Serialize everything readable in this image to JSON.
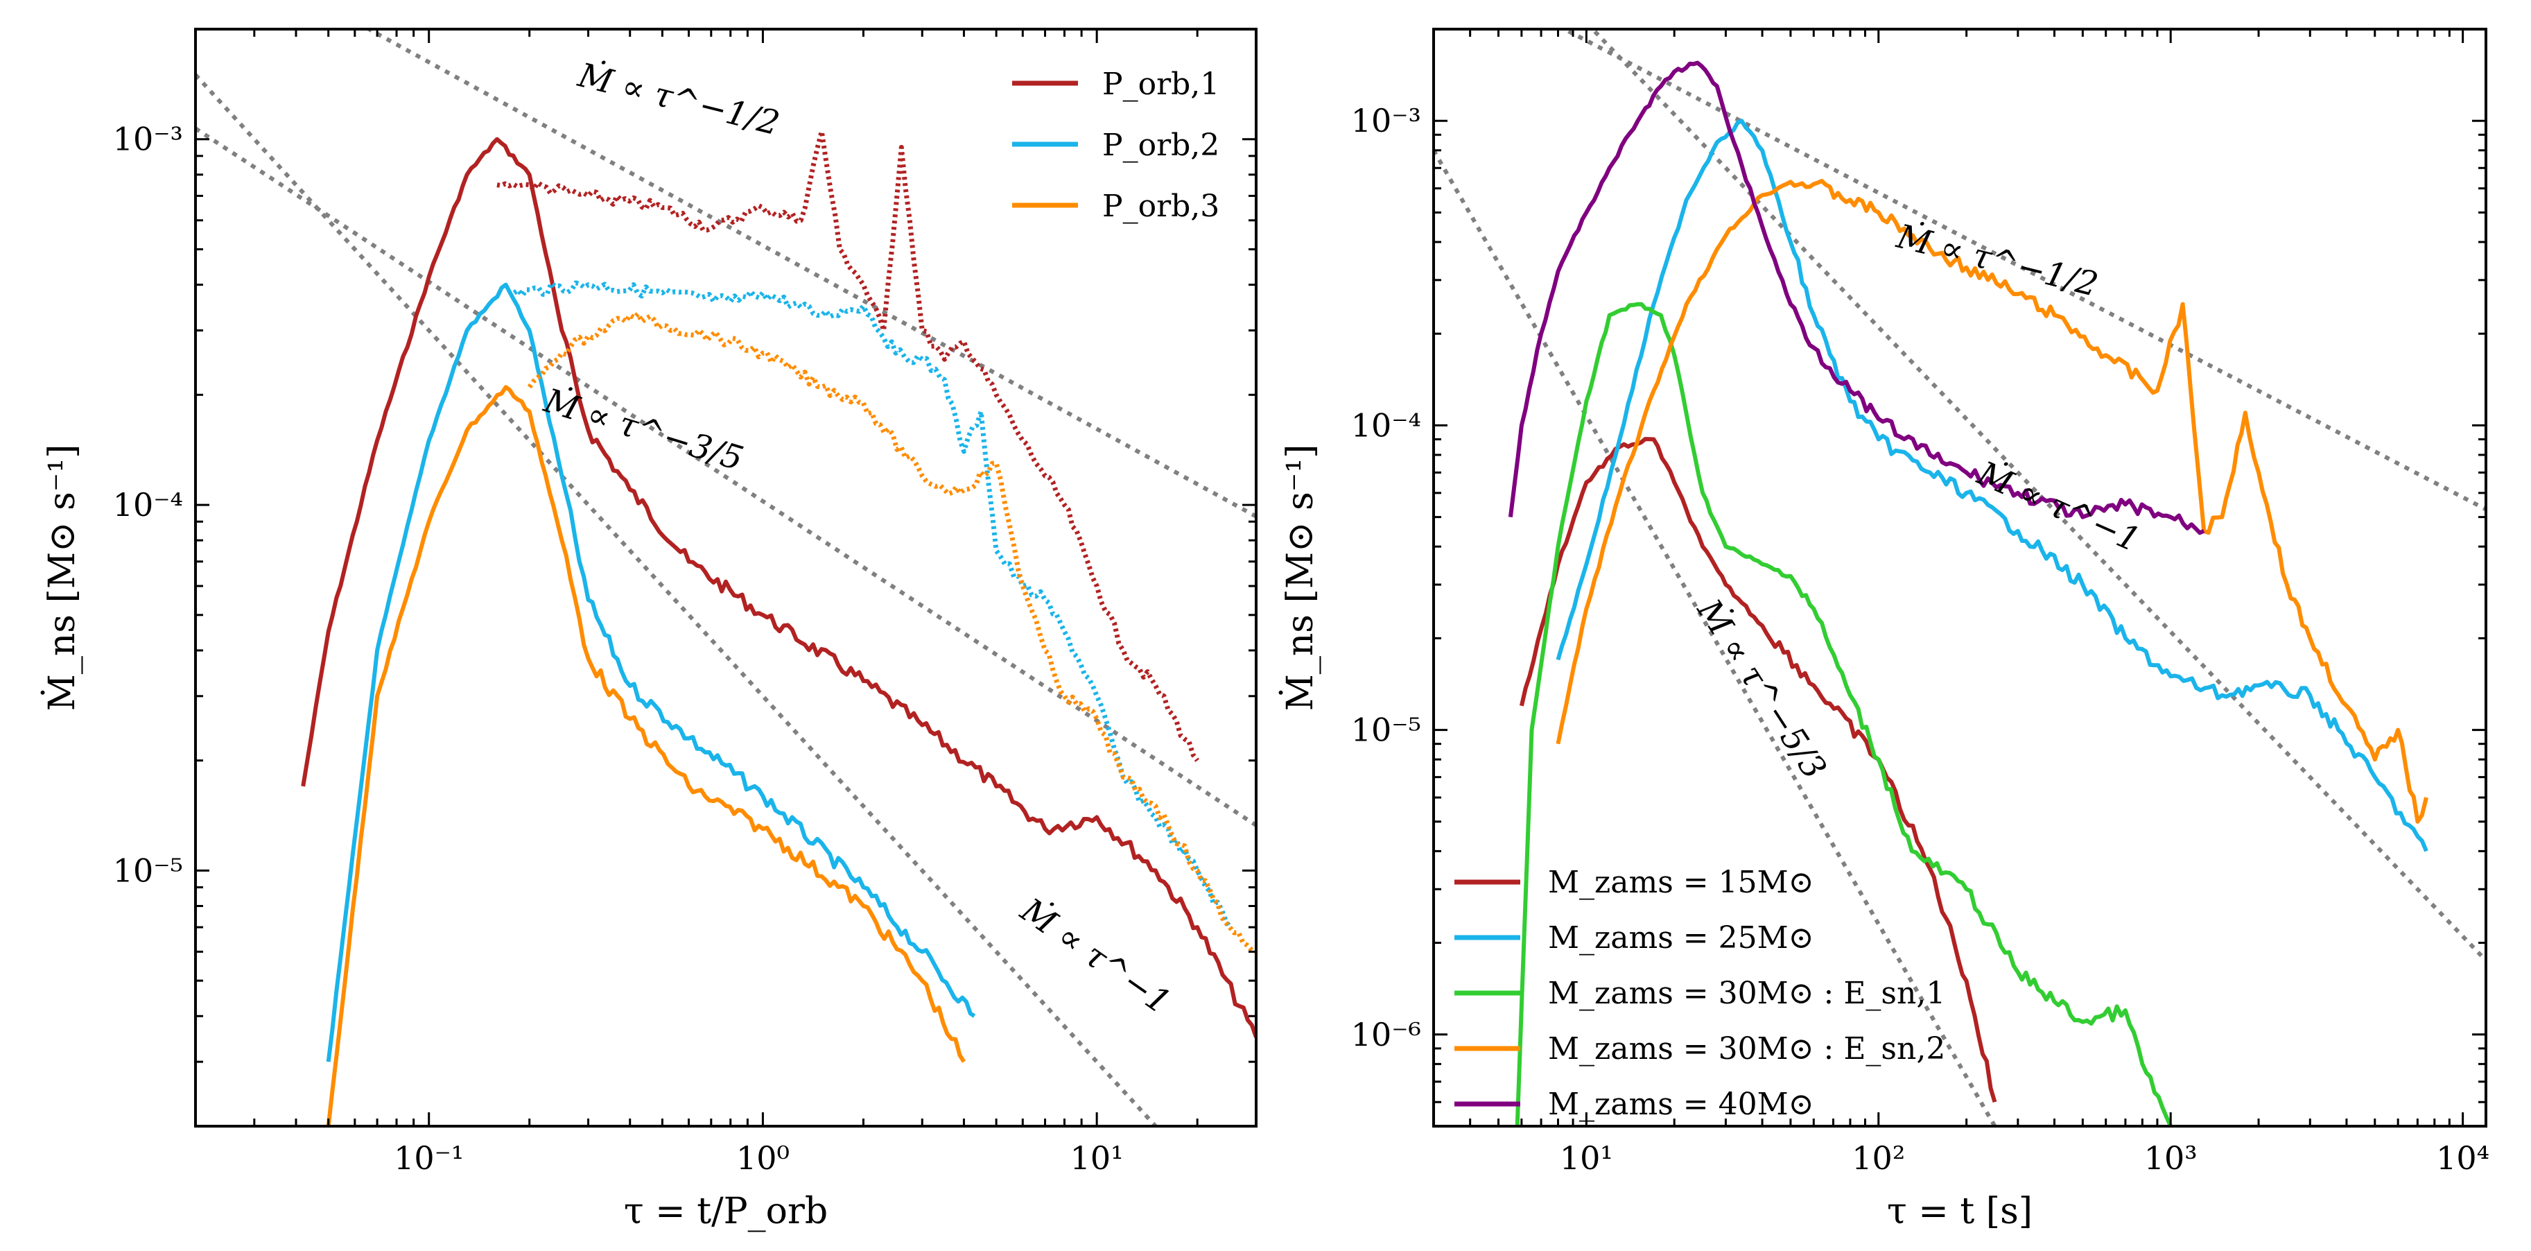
{
  "chart_data": [
    {
      "type": "line",
      "panel": "left",
      "xscale": "log",
      "yscale": "log",
      "xlim": [
        0.02,
        30
      ],
      "ylim": [
        2e-06,
        0.002
      ],
      "xlabel": "τ = t/P_orb",
      "ylabel": "Ṁ_ns [M⊙ s⁻¹]",
      "xticks": [
        {
          "v": 0.1,
          "label": "10⁻¹"
        },
        {
          "v": 1,
          "label": "10⁰"
        },
        {
          "v": 10,
          "label": "10¹"
        }
      ],
      "yticks": [
        {
          "v": 1e-05,
          "label": "10⁻⁵"
        },
        {
          "v": 0.0001,
          "label": "10⁻⁴"
        },
        {
          "v": 0.001,
          "label": "10⁻³"
        }
      ],
      "legend": {
        "position": "top-right",
        "entries": [
          "P_orb,1",
          "P_orb,2",
          "P_orb,3"
        ]
      },
      "series": [
        {
          "name": "P_orb,1 (solid)",
          "color": "#b22222",
          "style": "solid",
          "x": [
            0.042,
            0.05,
            0.07,
            0.1,
            0.13,
            0.16,
            0.2,
            0.25,
            0.3,
            0.4,
            0.6,
            1,
            2,
            3,
            5,
            7,
            10,
            15,
            20,
            30
          ],
          "y": [
            1.7e-05,
            4.5e-05,
            0.00015,
            0.00042,
            0.0008,
            0.001,
            0.0008,
            0.0003,
            0.00016,
            0.00011,
            7e-05,
            5e-05,
            3.3e-05,
            2.5e-05,
            1.7e-05,
            1.3e-05,
            1.4e-05,
            1e-05,
            7e-06,
            3.5e-06
          ]
        },
        {
          "name": "P_orb,1 (dotted)",
          "color": "#b22222",
          "style": "dotted",
          "x": [
            0.16,
            0.2,
            0.3,
            0.5,
            0.7,
            1,
            1.3,
            1.5,
            1.7,
            2,
            2.3,
            2.6,
            3,
            3.5,
            4,
            5,
            6,
            7,
            8,
            10,
            12,
            15,
            20
          ],
          "y": [
            0.00075,
            0.00075,
            0.0007,
            0.00065,
            0.00057,
            0.00065,
            0.0006,
            0.00105,
            0.0005,
            0.0004,
            0.0003,
            0.00095,
            0.0003,
            0.00025,
            0.00028,
            0.0002,
            0.00015,
            0.00012,
            0.0001,
            6e-05,
            4e-05,
            3.2e-05,
            2e-05
          ]
        },
        {
          "name": "P_orb,2 (solid)",
          "color": "#1ab4ea",
          "style": "solid",
          "x": [
            0.05,
            0.07,
            0.1,
            0.13,
            0.17,
            0.2,
            0.25,
            0.3,
            0.4,
            0.6,
            1,
            2,
            3,
            4.3
          ],
          "y": [
            3e-06,
            4e-05,
            0.00015,
            0.0003,
            0.0004,
            0.0003,
            0.00012,
            5.5e-05,
            3.2e-05,
            2.3e-05,
            1.6e-05,
            9e-06,
            6e-06,
            4e-06
          ]
        },
        {
          "name": "P_orb,2 (dotted)",
          "color": "#1ab4ea",
          "style": "dotted",
          "x": [
            0.18,
            0.3,
            0.5,
            0.8,
            1,
            1.5,
            2,
            2.5,
            3,
            3.5,
            4,
            4.5,
            5,
            6,
            7,
            8,
            10,
            12,
            15,
            20,
            25
          ],
          "y": [
            0.00038,
            0.0004,
            0.00038,
            0.00036,
            0.00038,
            0.00033,
            0.00035,
            0.00026,
            0.00025,
            0.00022,
            0.00014,
            0.00018,
            7.5e-05,
            6e-05,
            5.5e-05,
            4.5e-05,
            3e-05,
            1.8e-05,
            1.4e-05,
            1e-05,
            7e-06
          ]
        },
        {
          "name": "P_orb,3 (solid)",
          "color": "#ff8c00",
          "style": "solid",
          "x": [
            0.05,
            0.07,
            0.1,
            0.13,
            0.17,
            0.2,
            0.25,
            0.3,
            0.4,
            0.6,
            1,
            2,
            3,
            4
          ],
          "y": [
            2e-06,
            3e-05,
            9e-05,
            0.00016,
            0.00021,
            0.00018,
            8e-05,
            3.8e-05,
            2.6e-05,
            1.7e-05,
            1.3e-05,
            8e-06,
            5e-06,
            3e-06
          ]
        },
        {
          "name": "P_orb,3 (dotted)",
          "color": "#ff8c00",
          "style": "dotted",
          "x": [
            0.2,
            0.25,
            0.3,
            0.4,
            0.5,
            0.7,
            1,
            1.5,
            2,
            3,
            3.5,
            4,
            5,
            6,
            7,
            8,
            10,
            12,
            15,
            20,
            25,
            30
          ],
          "y": [
            0.00021,
            0.00026,
            0.00029,
            0.00033,
            0.00031,
            0.00029,
            0.00026,
            0.00021,
            0.00019,
            0.00012,
            0.00011,
            0.00011,
            0.00013,
            6e-05,
            4e-05,
            3e-05,
            2.6e-05,
            1.8e-05,
            1.5e-05,
            1e-05,
            7e-06,
            6e-06
          ]
        }
      ],
      "reference_lines": [
        {
          "label": "Ṁ ∝ τ^-1/2",
          "slope": -0.5,
          "x0": 0.05,
          "y0": 0.0023,
          "x1": 30,
          "y1": 9.3e-05
        },
        {
          "label": "Ṁ ∝ τ^-3/5",
          "slope": -0.6,
          "x0": 0.02,
          "y0": 0.00107,
          "x1": 30,
          "y1": 1.33e-05
        },
        {
          "label": "Ṁ ∝ τ^-1",
          "slope": -1,
          "x0": 0.02,
          "y0": 0.0015,
          "x1": 20,
          "y1": 1.5e-06
        }
      ],
      "annotations": [
        {
          "text": "Ṁ ∝ τ^−1/2",
          "x": 0.55,
          "y": 0.0012,
          "angle": 14
        },
        {
          "text": "Ṁ ∝ τ^−3/5",
          "x": 0.43,
          "y": 0.00015,
          "angle": 17
        },
        {
          "text": "Ṁ ∝ τ^−1",
          "x": 9.5,
          "y": 5.5e-06,
          "angle": 35
        }
      ]
    },
    {
      "type": "line",
      "panel": "right",
      "xscale": "log",
      "yscale": "log",
      "xlim": [
        3,
        12000
      ],
      "ylim": [
        5e-07,
        0.002
      ],
      "xlabel": "τ = t [s]",
      "ylabel": "Ṁ_ns [M⊙ s⁻¹]",
      "xticks": [
        {
          "v": 10,
          "label": "10¹"
        },
        {
          "v": 100,
          "label": "10²"
        },
        {
          "v": 1000,
          "label": "10³"
        },
        {
          "v": 10000,
          "label": "10⁴"
        }
      ],
      "yticks": [
        {
          "v": 1e-06,
          "label": "10⁻⁶"
        },
        {
          "v": 1e-05,
          "label": "10⁻⁵"
        },
        {
          "v": 0.0001,
          "label": "10⁻⁴"
        },
        {
          "v": 0.001,
          "label": "10⁻³"
        }
      ],
      "legend": {
        "position": "bottom-left",
        "entries": [
          "M_zams = 15M⊙",
          "M_zams = 25M⊙",
          "M_zams = 30M⊙ : E_sn,1",
          "M_zams = 30M⊙ : E_sn,2",
          "M_zams = 40M⊙"
        ]
      },
      "series": [
        {
          "name": "M_zams = 15M⊙",
          "color": "#b22222",
          "style": "solid",
          "x": [
            6,
            8,
            10,
            13,
            17,
            20,
            25,
            30,
            40,
            60,
            100,
            150,
            200,
            250
          ],
          "y": [
            1.2e-05,
            3.5e-05,
            6.5e-05,
            8.5e-05,
            9e-05,
            6.5e-05,
            4e-05,
            3e-05,
            2.2e-05,
            1.4e-05,
            8e-06,
            3.5e-06,
            1.5e-06,
            6e-07
          ]
        },
        {
          "name": "M_zams = 25M⊙",
          "color": "#1ab4ea",
          "style": "solid",
          "x": [
            8,
            10,
            13,
            17,
            22,
            28,
            34,
            40,
            50,
            60,
            80,
            100,
            150,
            200,
            300,
            500,
            700,
            1000,
            1500,
            2000,
            3000,
            5000,
            7500
          ],
          "y": [
            1.7e-05,
            3.5e-05,
            9e-05,
            0.00025,
            0.00055,
            0.00085,
            0.001,
            0.0008,
            0.0004,
            0.00023,
            0.00012,
            9e-05,
            7e-05,
            6e-05,
            4.5e-05,
            3e-05,
            2e-05,
            1.5e-05,
            1.3e-05,
            1.4e-05,
            1.3e-05,
            7e-06,
            4e-06
          ]
        },
        {
          "name": "M_zams = 30M⊙ : E_sn,1",
          "color": "#32cd32",
          "style": "solid",
          "x": [
            5.8,
            6.5,
            8,
            10,
            12,
            15,
            18,
            20,
            25,
            30,
            40,
            50,
            60,
            80,
            100,
            130,
            200,
            300,
            500,
            700,
            800,
            1000
          ],
          "y": [
            5e-07,
            1e-05,
            4e-05,
            0.00012,
            0.00023,
            0.00025,
            0.00023,
            0.00017,
            6e-05,
            4e-05,
            3.5e-05,
            3.2e-05,
            2.5e-05,
            1.3e-05,
            8e-06,
            4e-06,
            3e-06,
            1.6e-06,
            1.1e-06,
            1.2e-06,
            8e-07,
            5e-07
          ]
        },
        {
          "name": "M_zams = 30M⊙ : E_sn,2",
          "color": "#ff8c00",
          "style": "solid",
          "x": [
            8,
            10,
            13,
            17,
            22,
            30,
            40,
            50,
            60,
            80,
            100,
            150,
            200,
            300,
            400,
            600,
            900,
            1100,
            1200,
            1300,
            1500,
            1800,
            2000,
            2500,
            3000,
            4000,
            5000,
            6000,
            7000,
            7500
          ],
          "y": [
            9e-06,
            2.5e-05,
            6e-05,
            0.00013,
            0.00025,
            0.00042,
            0.00057,
            0.00063,
            0.00062,
            0.00055,
            0.0005,
            0.00038,
            0.00033,
            0.00027,
            0.00023,
            0.00017,
            0.00013,
            0.00025,
            0.0001,
            4.5e-05,
            5e-05,
            0.00011,
            7e-05,
            3e-05,
            2e-05,
            1.2e-05,
            8e-06,
            1e-05,
            5e-06,
            6e-06
          ]
        },
        {
          "name": "M_zams = 40M⊙",
          "color": "#800080",
          "style": "solid",
          "x": [
            5.5,
            6,
            7,
            8,
            10,
            12,
            15,
            18,
            20,
            24,
            28,
            32,
            40,
            50,
            60,
            80,
            100,
            150,
            200,
            300,
            500,
            700,
            1000,
            1300
          ],
          "y": [
            5e-05,
            0.0001,
            0.0002,
            0.00032,
            0.0005,
            0.0007,
            0.001,
            0.0013,
            0.00145,
            0.00155,
            0.0013,
            0.00085,
            0.00045,
            0.00025,
            0.00018,
            0.00013,
            0.000105,
            8e-05,
            7e-05,
            6e-05,
            5e-05,
            5.5e-05,
            5e-05,
            4.5e-05
          ]
        }
      ],
      "reference_lines": [
        {
          "label": "Ṁ ∝ τ^-1/2",
          "slope": -0.5,
          "x0": 4,
          "y0": 0.0029,
          "x1": 12000,
          "y1": 5.3e-05
        },
        {
          "label": "Ṁ ∝ τ^-1",
          "slope": -1,
          "x0": 3,
          "y0": 0.007,
          "x1": 12000,
          "y1": 1.75e-06
        },
        {
          "label": "Ṁ ∝ τ^-5/3",
          "slope": -1.667,
          "x0": 3,
          "y0": 0.0008,
          "x1": 250,
          "y1": 5e-07
        }
      ],
      "annotations": [
        {
          "text": "Ṁ ∝ τ^−1/2",
          "x": 250,
          "y": 0.00032,
          "angle": 14
        },
        {
          "text": "Ṁ ∝ τ^−1",
          "x": 400,
          "y": 5e-05,
          "angle": 24
        },
        {
          "text": "Ṁ ∝ τ^−5/3",
          "x": 37,
          "y": 1.3e-05,
          "angle": 57
        }
      ]
    }
  ]
}
